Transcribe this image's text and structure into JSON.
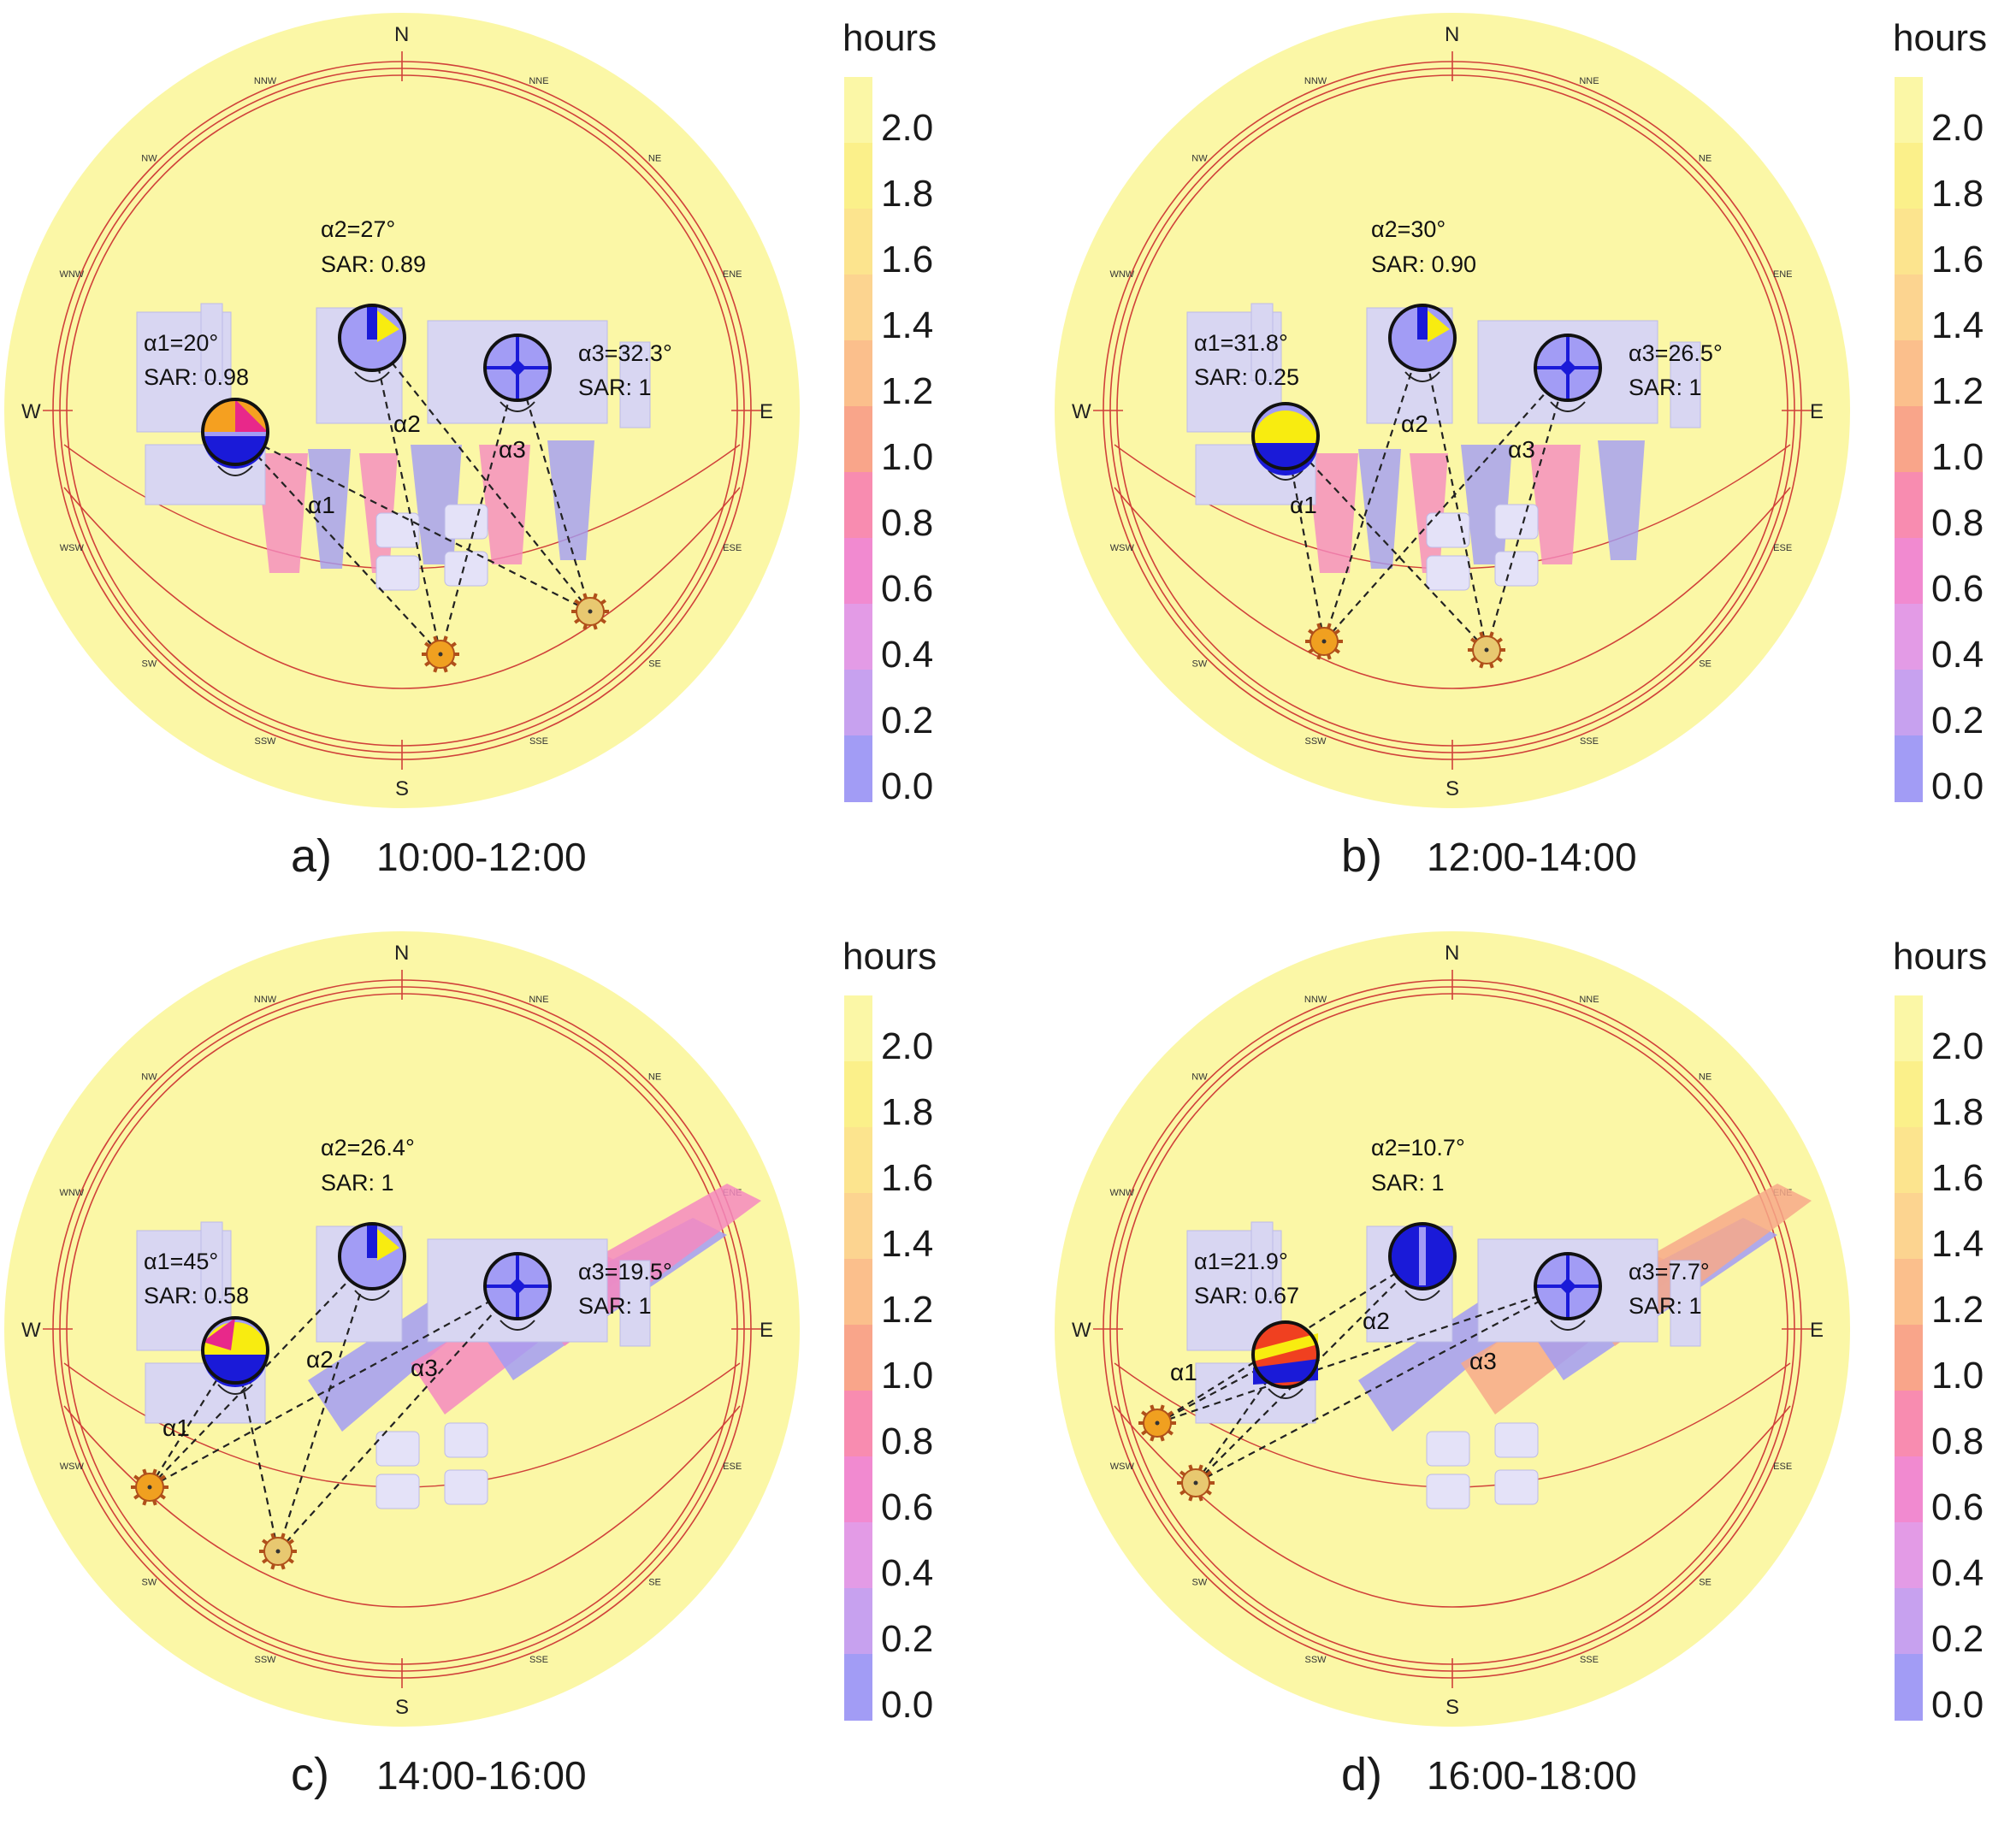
{
  "legend": {
    "title": "hours",
    "ticks": [
      "2.0",
      "1.8",
      "1.6",
      "1.4",
      "1.2",
      "1.0",
      "0.8",
      "0.6",
      "0.4",
      "0.2",
      "0.0"
    ],
    "colors": [
      "#fbf7a6",
      "#fbf08a",
      "#fce48e",
      "#fcd490",
      "#fbbf8c",
      "#f9a58a",
      "#f88cb0",
      "#f18ad0",
      "#e39be6",
      "#c7a1ef",
      "#a29cf5"
    ]
  },
  "compass": {
    "cardinals": [
      "N",
      "E",
      "S",
      "W"
    ],
    "intercardinals": [
      "NNE",
      "NE",
      "ENE",
      "ESE",
      "SE",
      "SSE",
      "SSW",
      "SW",
      "WSW",
      "WNW",
      "NW",
      "NNW"
    ]
  },
  "colors": {
    "background": "#fbf7a6",
    "rings": "#d0413a",
    "building": "#d8d6f2",
    "shadow_blue": "#a29cf5",
    "shadow_pink": "#f58ac0",
    "shadow_orange": "#f7a98a",
    "sun": "#f0a020",
    "sun_pale": "#e8c870"
  },
  "panels": [
    {
      "letter": "a)",
      "time": "10:00-12:00",
      "a1": "α1=20°",
      "sar1": "SAR: 0.98",
      "a2": "α2=27°",
      "sar2": "SAR: 0.89",
      "a3": "α3=32.3°",
      "sar3": "SAR: 1",
      "lbl1": "α1",
      "lbl2": "α2",
      "lbl3": "α3"
    },
    {
      "letter": "b)",
      "time": "12:00-14:00",
      "a1": "α1=31.8°",
      "sar1": "SAR: 0.25",
      "a2": "α2=30°",
      "sar2": "SAR: 0.90",
      "a3": "α3=26.5°",
      "sar3": "SAR: 1",
      "lbl1": "α1",
      "lbl2": "α2",
      "lbl3": "α3"
    },
    {
      "letter": "c)",
      "time": "14:00-16:00",
      "a1": "α1=45°",
      "sar1": "SAR: 0.58",
      "a2": "α2=26.4°",
      "sar2": "SAR: 1",
      "a3": "α3=19.5°",
      "sar3": "SAR: 1",
      "lbl1": "α1",
      "lbl2": "α2",
      "lbl3": "α3"
    },
    {
      "letter": "d)",
      "time": "16:00-18:00",
      "a1": "α1=21.9°",
      "sar1": "SAR: 0.67",
      "a2": "α2=10.7°",
      "sar2": "SAR: 1",
      "a3": "α3=7.7°",
      "sar3": "SAR: 1",
      "lbl1": "α1",
      "lbl2": "α2",
      "lbl3": "α3"
    }
  ]
}
